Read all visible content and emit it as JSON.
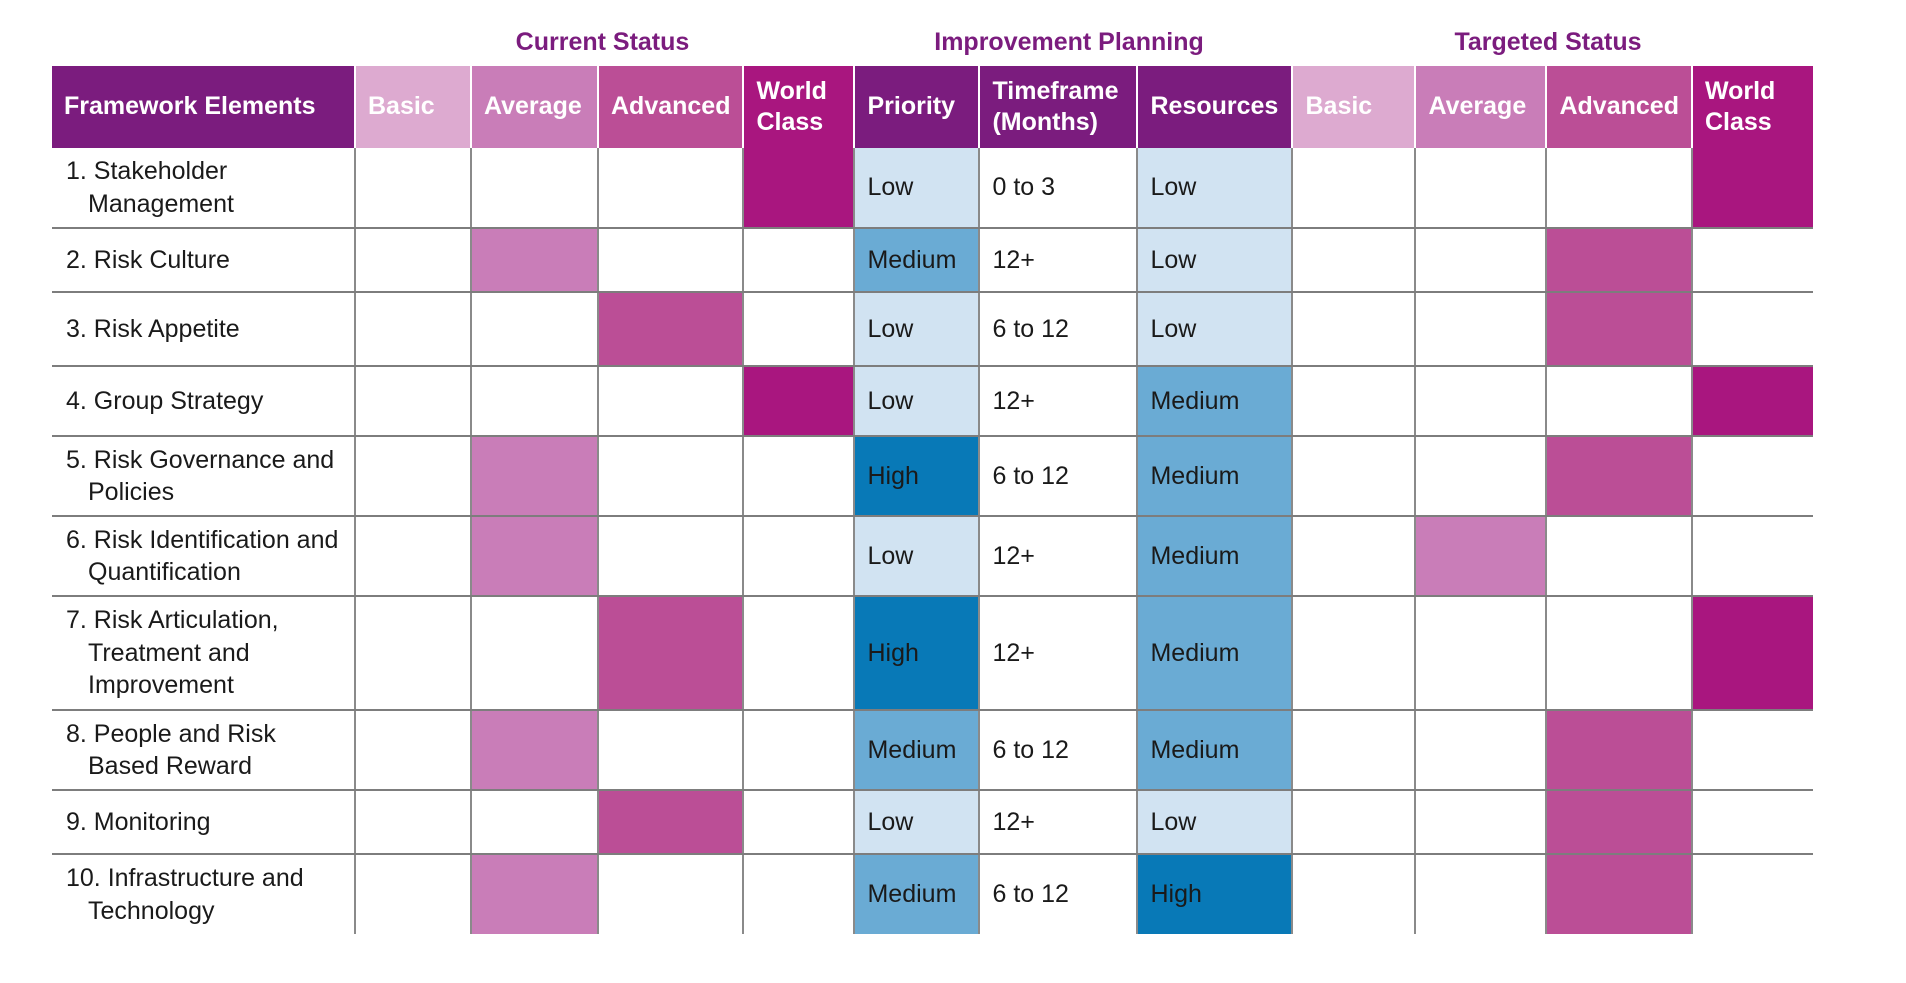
{
  "colors": {
    "header_dark": "#7b1c7e",
    "basic": "#ddaad0",
    "average": "#c97db8",
    "advanced": "#bb4e96",
    "world_class": "#a9167f",
    "low": "#d1e3f2",
    "medium": "#6aabd4",
    "high": "#0879b7"
  },
  "group_titles": {
    "current": "Current Status",
    "planning": "Improvement Planning",
    "targeted": "Targeted Status"
  },
  "headers": {
    "framework": "Framework Elements",
    "basic": "Basic",
    "average": "Average",
    "advanced": "Advanced",
    "world_class": "World Class",
    "priority": "Priority",
    "timeframe": "Timeframe (Months)",
    "resources": "Resources"
  },
  "rows": [
    {
      "element": "1. Stakeholder Management",
      "current": "world_class",
      "priority": "Low",
      "timeframe": "0 to 3",
      "resources": "Low",
      "target": "world_class"
    },
    {
      "element": "2. Risk Culture",
      "current": "average",
      "priority": "Medium",
      "timeframe": "12+",
      "resources": "Low",
      "target": "advanced"
    },
    {
      "element": "3. Risk Appetite",
      "current": "advanced",
      "priority": "Low",
      "timeframe": "6 to 12",
      "resources": "Low",
      "target": "advanced"
    },
    {
      "element": "4. Group Strategy",
      "current": "world_class",
      "priority": "Low",
      "timeframe": "12+",
      "resources": "Medium",
      "target": "world_class"
    },
    {
      "element": "5. Risk Governance and Policies",
      "current": "average",
      "priority": "High",
      "timeframe": "6 to 12",
      "resources": "Medium",
      "target": "advanced"
    },
    {
      "element": "6. Risk Identification and Quantification",
      "current": "average",
      "priority": "Low",
      "timeframe": "12+",
      "resources": "Medium",
      "target": "average"
    },
    {
      "element": "7. Risk Articulation, Treatment and Improvement",
      "current": "advanced",
      "priority": "High",
      "timeframe": "12+",
      "resources": "Medium",
      "target": "world_class"
    },
    {
      "element": "8. People and Risk Based Reward",
      "current": "average",
      "priority": "Medium",
      "timeframe": "6 to 12",
      "resources": "Medium",
      "target": "advanced"
    },
    {
      "element": "9. Monitoring",
      "current": "advanced",
      "priority": "Low",
      "timeframe": "12+",
      "resources": "Low",
      "target": "advanced"
    },
    {
      "element": "10. Infrastructure and Technology",
      "current": "average",
      "priority": "Medium",
      "timeframe": "6 to 12",
      "resources": "High",
      "target": "advanced"
    }
  ]
}
